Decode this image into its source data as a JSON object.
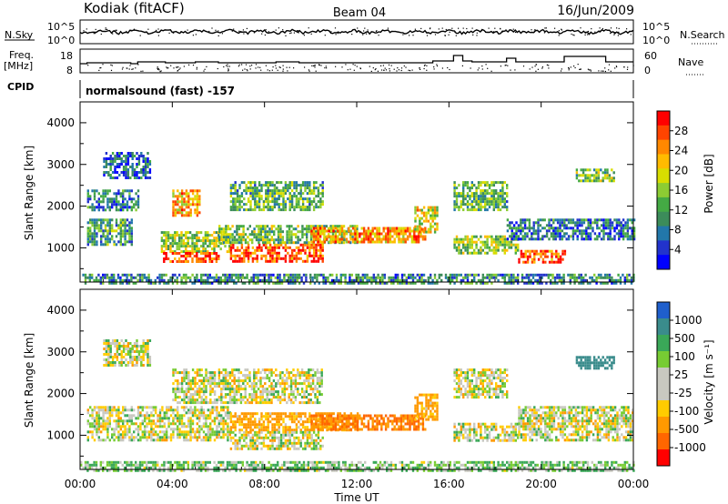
{
  "header": {
    "station": "Kodiak (fitACF)",
    "beam": "Beam 04",
    "date": "16/Jun/2009"
  },
  "noise_panel": {
    "left_label": "N.Sky",
    "left_ticks": [
      "10^5",
      "10^0"
    ],
    "right_label": "N.Search",
    "right_ticks": [
      "10^5",
      "10^0"
    ]
  },
  "freq_panel": {
    "left_label_1": "Freq.",
    "left_label_2": "[MHz]",
    "left_ticks": [
      "18",
      "8"
    ],
    "right_label": "Nave",
    "right_ticks": [
      "60",
      "0"
    ],
    "cpid_label": "CPID",
    "cpid_value": "normalsound (fast) -157"
  },
  "x_axis": {
    "label": "Time UT",
    "ticks": [
      "00:00",
      "04:00",
      "08:00",
      "12:00",
      "16:00",
      "20:00",
      "00:00"
    ]
  },
  "power_colorbar": {
    "label": "Power [dB]",
    "ticks": [
      "28",
      "24",
      "20",
      "16",
      "12",
      "8",
      "4"
    ],
    "colors": [
      "#ff0000",
      "#ff4400",
      "#ff8800",
      "#ffbb00",
      "#d8dd00",
      "#8ccc33",
      "#44aa44",
      "#3c8c5a",
      "#2277aa",
      "#2233cc",
      "#0000ff"
    ]
  },
  "velocity_colorbar": {
    "label": "Velocity [m s⁻¹]",
    "ticks": [
      "1000",
      "500",
      "100",
      "25",
      "-25",
      "-100",
      "-500",
      "-1000"
    ],
    "colors": [
      "#1f5fcc",
      "#3a8c8c",
      "#3aa858",
      "#77cc33",
      "#c8c8c0",
      "#c8c8c0",
      "#ffcc00",
      "#ff9900",
      "#ff6600",
      "#ff0000"
    ]
  },
  "chart_data": [
    {
      "type": "heatmap",
      "name": "power",
      "ylabel": "Slant Range [km]",
      "xlabel": "",
      "ylim": [
        180,
        4500
      ],
      "yticks": [
        1000,
        2000,
        3000,
        4000
      ],
      "xlim_hours": [
        0,
        24
      ],
      "regions": [
        {
          "t0": 0.3,
          "t1": 2.2,
          "r0": 1100,
          "r1": 1700,
          "level": 0.35
        },
        {
          "t0": 0.3,
          "t1": 2.5,
          "r0": 1900,
          "r1": 2400,
          "level": 0.25
        },
        {
          "t0": 1.0,
          "t1": 3.0,
          "r0": 2700,
          "r1": 3300,
          "level": 0.2
        },
        {
          "t0": 3.5,
          "t1": 6.5,
          "r0": 900,
          "r1": 1400,
          "level": 0.5
        },
        {
          "t0": 3.5,
          "t1": 6.0,
          "r0": 650,
          "r1": 900,
          "level": 0.85
        },
        {
          "t0": 4.0,
          "t1": 5.2,
          "r0": 1800,
          "r1": 2400,
          "level": 0.7
        },
        {
          "t0": 6.5,
          "t1": 10.5,
          "r0": 700,
          "r1": 1100,
          "level": 0.85
        },
        {
          "t0": 6.0,
          "t1": 12.0,
          "r0": 1100,
          "r1": 1550,
          "level": 0.45
        },
        {
          "t0": 6.5,
          "t1": 10.5,
          "r0": 1900,
          "r1": 2600,
          "level": 0.4
        },
        {
          "t0": 10.0,
          "t1": 15.0,
          "r0": 1150,
          "r1": 1500,
          "level": 0.75
        },
        {
          "t0": 14.5,
          "t1": 15.5,
          "r0": 1400,
          "r1": 2000,
          "level": 0.6
        },
        {
          "t0": 16.2,
          "t1": 19.0,
          "r0": 900,
          "r1": 1300,
          "level": 0.5
        },
        {
          "t0": 16.2,
          "t1": 18.5,
          "r0": 1900,
          "r1": 2600,
          "level": 0.4
        },
        {
          "t0": 19.0,
          "t1": 21.0,
          "r0": 650,
          "r1": 950,
          "level": 0.85
        },
        {
          "t0": 18.5,
          "t1": 24.0,
          "r0": 1200,
          "r1": 1700,
          "level": 0.25
        },
        {
          "t0": 21.5,
          "t1": 23.2,
          "r0": 2600,
          "r1": 2900,
          "level": 0.45
        },
        {
          "t0": 0.0,
          "t1": 24.0,
          "r0": 180,
          "r1": 380,
          "level": 0.3
        }
      ]
    },
    {
      "type": "heatmap",
      "name": "velocity",
      "ylabel": "Slant Range [km]",
      "xlabel": "Time UT",
      "ylim": [
        180,
        4500
      ],
      "yticks": [
        1000,
        2000,
        3000,
        4000
      ],
      "xlim_hours": [
        0,
        24
      ],
      "regions": [
        {
          "t0": 0.3,
          "t1": 6.5,
          "r0": 900,
          "r1": 1700,
          "velocity": 0
        },
        {
          "t0": 1.0,
          "t1": 3.0,
          "r0": 2700,
          "r1": 3300,
          "velocity": 0
        },
        {
          "t0": 4.0,
          "t1": 10.5,
          "r0": 1800,
          "r1": 2600,
          "velocity": 0
        },
        {
          "t0": 6.5,
          "t1": 12.0,
          "r0": 1100,
          "r1": 1550,
          "velocity": -100
        },
        {
          "t0": 6.5,
          "t1": 10.5,
          "r0": 700,
          "r1": 1100,
          "velocity": 0
        },
        {
          "t0": 10.0,
          "t1": 15.0,
          "r0": 1150,
          "r1": 1500,
          "velocity": -300
        },
        {
          "t0": 14.5,
          "t1": 15.5,
          "r0": 1400,
          "r1": 2000,
          "velocity": -100
        },
        {
          "t0": 16.2,
          "t1": 19.0,
          "r0": 900,
          "r1": 1300,
          "velocity": 0
        },
        {
          "t0": 16.2,
          "t1": 18.5,
          "r0": 1900,
          "r1": 2600,
          "velocity": 0
        },
        {
          "t0": 19.0,
          "t1": 24.0,
          "r0": 900,
          "r1": 1700,
          "velocity": 0
        },
        {
          "t0": 21.5,
          "t1": 23.2,
          "r0": 2600,
          "r1": 2900,
          "velocity": 600
        },
        {
          "t0": 0.0,
          "t1": 24.0,
          "r0": 180,
          "r1": 380,
          "velocity": 50
        }
      ]
    }
  ]
}
